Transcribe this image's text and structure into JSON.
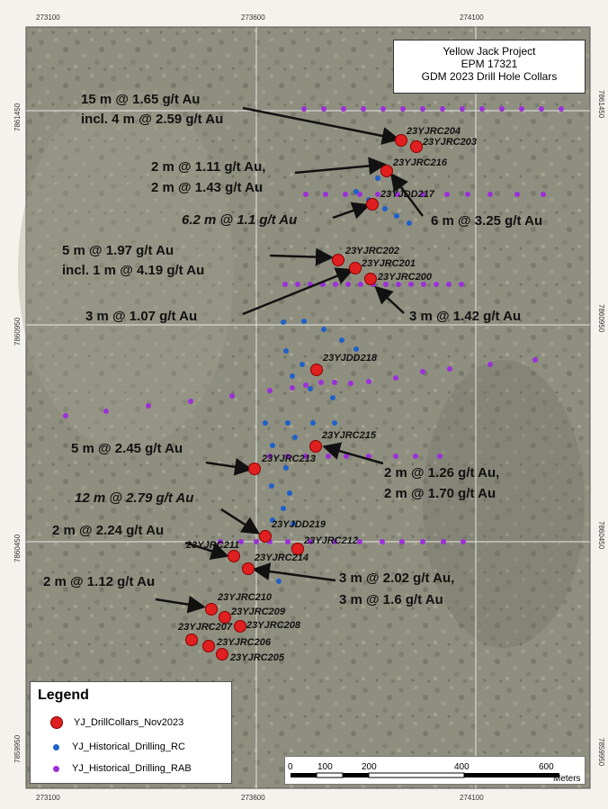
{
  "map": {
    "title_lines": [
      "Yellow Jack Project",
      "EPM 17321",
      "GDM 2023 Drill Hole Collars"
    ],
    "easting_ticks": [
      "273100",
      "273600",
      "274100"
    ],
    "northing_ticks": [
      "7861450",
      "7860950",
      "7860450",
      "7859950"
    ],
    "colors": {
      "drill_collar": "#e02020",
      "historical_rc": "#2060c8",
      "historical_rab": "#9b30d9",
      "grid": "#e6e6e6",
      "frame_bg": "#f4f2ec"
    },
    "hole_labels": [
      "23YJRC204",
      "23YJRC203",
      "23YJRC216",
      "23YJDD217",
      "23YJRC202",
      "23YJRC201",
      "23YJRC200",
      "23YJDD218",
      "23YJRC215",
      "23YJRC213",
      "23YJDD219",
      "23YJRC212",
      "23YJRC211",
      "23YJRC214",
      "23YJRC210",
      "23YJRC209",
      "23YJRC207",
      "23YJRC208",
      "23YJRC206",
      "23YJRC205"
    ],
    "assay_lines": [
      "15 m @ 1.65 g/t Au",
      "incl. 4 m @ 2.59 g/t Au",
      "2 m @ 1.11 g/t Au,",
      "2 m @ 1.43 g/t Au",
      "6.2 m @ 1.1 g/t Au",
      "6 m @ 3.25 g/t Au",
      "5 m @ 1.97 g/t Au",
      "incl. 1 m @ 4.19 g/t Au",
      "3 m @ 1.07 g/t Au",
      "3 m @ 1.42 g/t Au",
      "5 m @ 2.45 g/t Au",
      "2 m @ 1.26 g/t Au,",
      "2 m @ 1.70 g/t Au",
      "12 m @ 2.79 g/t Au",
      "2 m @ 2.24 g/t Au",
      "3 m @ 2.02 g/t Au,",
      "3 m @ 1.6 g/t Au",
      "2 m @ 1.12 g/t Au"
    ],
    "legend": {
      "title": "Legend",
      "items": [
        "YJ_DrillCollars_Nov2023",
        "YJ_Historical_Drilling_RC",
        "YJ_Historical_Drilling_RAB"
      ]
    },
    "scale": {
      "labels": [
        "0",
        "100",
        "200",
        "400",
        "600"
      ],
      "unit": "Meters"
    }
  }
}
